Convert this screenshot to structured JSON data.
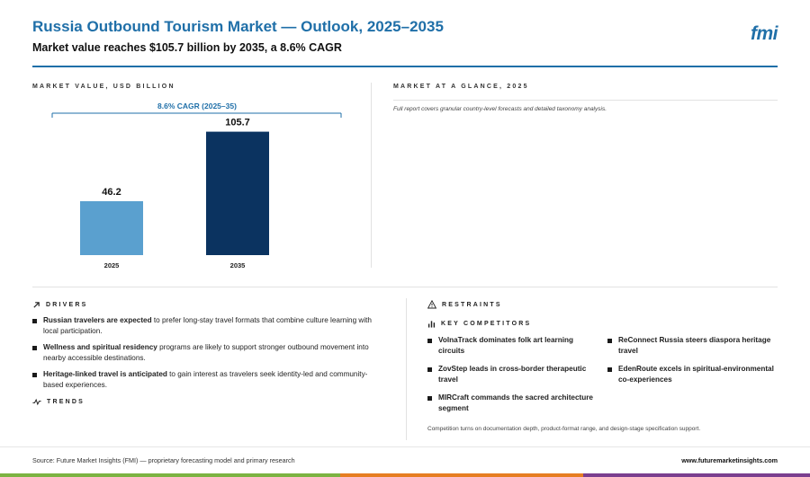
{
  "header": {
    "title": "Russia Outbound Tourism Market — Outlook, 2025–2035",
    "subtitle": "Market value reaches $105.7 billion by 2035, a 8.6% CAGR",
    "logo": "fmi"
  },
  "chart_section": {
    "label": "MARKET VALUE, USD BILLION"
  },
  "glance": {
    "label": "MARKET AT A GLANCE, 2025",
    "note": "Full report covers granular country-level forecasts and detailed taxonomy analysis."
  },
  "chart_data": {
    "type": "bar",
    "categories": [
      "2025",
      "2035"
    ],
    "values": [
      46.2,
      105.7
    ],
    "value_labels": [
      "46.2",
      "105.7"
    ],
    "colors": [
      "#5aa0cf",
      "#0b3360"
    ],
    "annotation": "8.6% CAGR (2025–35)",
    "ylim": [
      0,
      120
    ],
    "grid": false,
    "legend": "none"
  },
  "drivers": {
    "label": "DRIVERS",
    "items": [
      {
        "bold": "Russian travelers are expected",
        "rest": " to prefer long-stay travel formats that combine culture learning with local participation."
      },
      {
        "bold": "Wellness and spiritual residency",
        "rest": " programs are likely to support stronger outbound movement into nearby accessible destinations."
      },
      {
        "bold": "Heritage-linked travel is anticipated",
        "rest": " to gain interest as travelers seek identity-led and community-based experiences."
      }
    ]
  },
  "trends": {
    "label": "TRENDS"
  },
  "restraints": {
    "label": "RESTRAINTS"
  },
  "competitors": {
    "label": "KEY COMPETITORS",
    "items": [
      "VolnaTrack dominates folk art learning circuits",
      "ReConnect Russia steers diaspora heritage travel",
      "ZovStep leads in cross-border therapeutic travel",
      "EdenRoute excels in spiritual-environmental co-experiences",
      "MIRCraft commands the sacred architecture segment"
    ],
    "note": "Competition turns on documentation depth, product-format range, and design-stage specification support."
  },
  "footer": {
    "source": "Source: Future Market Insights (FMI) — proprietary forecasting model and primary research",
    "site": "www.futuremarketinsights.com"
  },
  "brand": {
    "primary": "#1f6fa8",
    "dark_bar": "#0b3360",
    "light_bar": "#5aa0cf",
    "green": "#7cb342",
    "orange": "#e67e22",
    "purple": "#7b3f8f"
  }
}
